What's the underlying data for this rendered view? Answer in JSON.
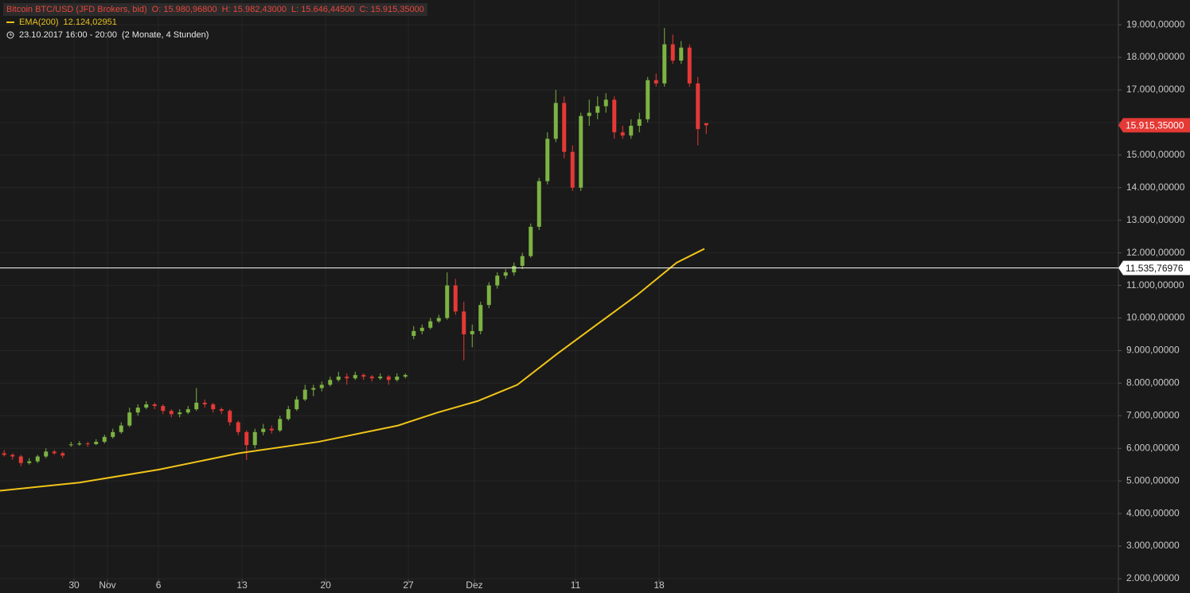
{
  "chart_data": {
    "type": "candlestick",
    "title": "Bitcoin BTC/USD (JFD Brokers, bid)",
    "ohlc_labels": [
      "O: 15.980,96800",
      "H: 15.982,43000",
      "L: 15.646,44500",
      "C: 15.915,35000"
    ],
    "subtitle": "23.10.2017 16:00 - 20:00",
    "period": "(2 Monate, 4 Stunden)",
    "up_color": "#7cb342",
    "down_color": "#e53935",
    "grid": true,
    "xlim": [
      0,
      66.905
    ],
    "ylim": [
      1560,
      19760
    ],
    "xticks": [
      {
        "value": 4.43,
        "label": "30"
      },
      {
        "value": 6.43,
        "label": "Nov"
      },
      {
        "value": 9.48,
        "label": "6"
      },
      {
        "value": 14.48,
        "label": "13"
      },
      {
        "value": 19.48,
        "label": "20"
      },
      {
        "value": 24.43,
        "label": "27"
      },
      {
        "value": 28.38,
        "label": "Dez"
      },
      {
        "value": 34.43,
        "label": "11"
      },
      {
        "value": 39.43,
        "label": "18"
      }
    ],
    "yticks": [
      {
        "value": 2000,
        "label": "2.000,00000"
      },
      {
        "value": 3000,
        "label": "3.000,00000"
      },
      {
        "value": 4000,
        "label": "4.000,00000"
      },
      {
        "value": 5000,
        "label": "5.000,00000"
      },
      {
        "value": 6000,
        "label": "6.000,00000"
      },
      {
        "value": 7000,
        "label": "7.000,00000"
      },
      {
        "value": 8000,
        "label": "8.000,00000"
      },
      {
        "value": 9000,
        "label": "9.000,00000"
      },
      {
        "value": 10000,
        "label": "10.000,00000"
      },
      {
        "value": 11000,
        "label": "11.000,00000"
      },
      {
        "value": 12000,
        "label": "12.000,00000"
      },
      {
        "value": 13000,
        "label": "13.000,00000"
      },
      {
        "value": 14000,
        "label": "14.000,00000"
      },
      {
        "value": 15000,
        "label": "15.000,00000"
      },
      {
        "value": 16000,
        "label": "16.000,00000"
      },
      {
        "value": 17000,
        "label": "17.000,00000"
      },
      {
        "value": 18000,
        "label": "18.000,00000"
      },
      {
        "value": 19000,
        "label": "19.000,00000"
      }
    ],
    "x": [
      0.25,
      0.75,
      1.25,
      1.75,
      2.25,
      2.75,
      3.25,
      3.75,
      4.25,
      4.75,
      5.25,
      5.75,
      6.25,
      6.75,
      7.25,
      7.75,
      8.25,
      8.75,
      9.25,
      9.75,
      10.25,
      10.75,
      11.25,
      11.75,
      12.25,
      12.75,
      13.25,
      13.75,
      14.25,
      14.75,
      15.25,
      15.75,
      16.25,
      16.75,
      17.25,
      17.75,
      18.25,
      18.75,
      19.25,
      19.75,
      20.25,
      20.75,
      21.25,
      21.75,
      22.25,
      22.75,
      23.25,
      23.75,
      24.25,
      24.75,
      25.25,
      25.75,
      26.25,
      26.75,
      27.25,
      27.75,
      28.25,
      28.75,
      29.25,
      29.75,
      30.25,
      30.75,
      31.25,
      31.75,
      32.25,
      32.75,
      33.25,
      33.75,
      34.25,
      34.75,
      35.25,
      35.75,
      36.25,
      36.75,
      37.25,
      37.75,
      38.25,
      38.75,
      39.25,
      39.75,
      40.25,
      40.75,
      41.25,
      41.75,
      42.25
    ],
    "open": [
      5850,
      5800,
      5750,
      5550,
      5600,
      5750,
      5900,
      5850,
      6100,
      6120,
      6150,
      6130,
      6200,
      6350,
      6500,
      6700,
      7100,
      7250,
      7350,
      7300,
      7150,
      7050,
      7100,
      7200,
      7400,
      7350,
      7200,
      7150,
      6800,
      6500,
      6100,
      6500,
      6600,
      6550,
      6900,
      7200,
      7500,
      7800,
      7850,
      7950,
      8100,
      8200,
      8150,
      8250,
      8200,
      8150,
      8200,
      8100,
      8200,
      9450,
      9600,
      9700,
      9900,
      10000,
      11000,
      10200,
      9500,
      9600,
      10400,
      11000,
      11300,
      11400,
      11600,
      11900,
      12800,
      14200,
      15500,
      16600,
      15100,
      14000,
      16200,
      16300,
      16500,
      16700,
      15700,
      15600,
      15900,
      16100,
      17300,
      17200,
      18400,
      17900,
      18300,
      17200,
      15980.968
    ],
    "high": [
      5950,
      5850,
      5800,
      5700,
      5800,
      6000,
      5950,
      5900,
      6200,
      6220,
      6200,
      6280,
      6420,
      6600,
      6800,
      7250,
      7350,
      7450,
      7400,
      7350,
      7200,
      7200,
      7300,
      7850,
      7500,
      7400,
      7250,
      7200,
      6850,
      6550,
      6600,
      6750,
      6700,
      7000,
      7300,
      7600,
      7950,
      7950,
      8050,
      8200,
      8350,
      8300,
      8350,
      8300,
      8250,
      8300,
      8250,
      8300,
      8300,
      9750,
      9800,
      10000,
      10100,
      11400,
      11200,
      10500,
      9800,
      10500,
      11100,
      11400,
      11500,
      11700,
      12000,
      12900,
      14300,
      15700,
      17000,
      16800,
      15300,
      16300,
      16700,
      16800,
      16900,
      16800,
      15900,
      16100,
      16300,
      17400,
      17500,
      18900,
      18700,
      18500,
      18400,
      17400,
      15982.43
    ],
    "low": [
      5750,
      5650,
      5450,
      5500,
      5550,
      5700,
      5800,
      5700,
      6050,
      6080,
      6050,
      6100,
      6150,
      6300,
      6450,
      6650,
      7000,
      7200,
      7200,
      7050,
      6950,
      6950,
      7050,
      7150,
      7250,
      7100,
      7050,
      6700,
      6400,
      5640,
      6000,
      6400,
      6450,
      6500,
      6850,
      7150,
      7450,
      7600,
      7750,
      7900,
      8050,
      7950,
      8100,
      8100,
      8050,
      8100,
      7950,
      8050,
      8150,
      9350,
      9500,
      9650,
      9850,
      9950,
      10100,
      8700,
      9100,
      9500,
      10300,
      10900,
      11200,
      11300,
      11500,
      11850,
      12700,
      14100,
      15400,
      14900,
      13900,
      13900,
      15900,
      16100,
      16300,
      15500,
      15500,
      15500,
      15700,
      16000,
      17100,
      17100,
      17800,
      17800,
      17100,
      15300,
      15646.445
    ],
    "close": [
      5800,
      5750,
      5550,
      5600,
      5750,
      5900,
      5850,
      5780,
      6120,
      6150,
      6130,
      6200,
      6350,
      6500,
      6700,
      7100,
      7250,
      7350,
      7300,
      7150,
      7050,
      7100,
      7200,
      7400,
      7350,
      7200,
      7150,
      6800,
      6500,
      6100,
      6500,
      6600,
      6550,
      6900,
      7200,
      7500,
      7800,
      7850,
      7950,
      8100,
      8200,
      8150,
      8250,
      8200,
      8150,
      8200,
      8100,
      8200,
      8250,
      9600,
      9700,
      9900,
      10000,
      11000,
      10200,
      9500,
      9600,
      10400,
      11000,
      11300,
      11400,
      11600,
      11900,
      12800,
      14200,
      15500,
      16600,
      15100,
      14000,
      16200,
      16300,
      16500,
      16700,
      15700,
      15600,
      15900,
      16100,
      17300,
      17200,
      18400,
      17900,
      18300,
      17200,
      15800,
      15915.35
    ],
    "ema": {
      "name": "EMA(200)",
      "value_label": "12.124,02951",
      "color": "#f0c419",
      "x": [
        0,
        4.76,
        9.52,
        14.29,
        19.05,
        23.81,
        26.19,
        28.57,
        30.95,
        33.33,
        35.71,
        38.1,
        40.48,
        42.14
      ],
      "values": [
        4700,
        4950,
        5350,
        5850,
        6200,
        6700,
        7100,
        7450,
        7950,
        8900,
        9800,
        10700,
        11700,
        12124.03
      ]
    },
    "hline": {
      "value": 11535.76976,
      "label": "11.535,76976"
    },
    "last_price": {
      "value": 15915.35,
      "label": "15.915,35000"
    }
  }
}
